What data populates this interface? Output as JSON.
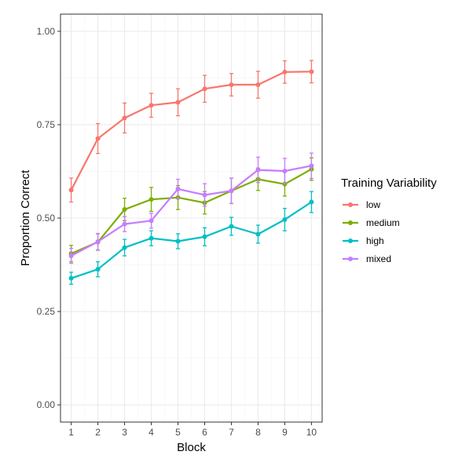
{
  "chart_data": {
    "type": "line",
    "xlabel": "Block",
    "ylabel": "Proportion Correct",
    "x": [
      1,
      2,
      3,
      4,
      5,
      6,
      7,
      8,
      9,
      10
    ],
    "x_tick_labels": [
      "1",
      "2",
      "3",
      "4",
      "5",
      "6",
      "7",
      "8",
      "9",
      "10"
    ],
    "ylim": [
      0,
      1
    ],
    "y_ticks": [
      0,
      0.25,
      0.5,
      0.75,
      1.0
    ],
    "y_tick_labels": [
      "0.00",
      "0.25",
      "0.50",
      "0.75",
      "1.00"
    ],
    "grid": true,
    "legend": {
      "title": "Training Variability",
      "position": "right"
    },
    "series": [
      {
        "name": "low",
        "color": "#F8766D",
        "values": [
          0.575,
          0.713,
          0.768,
          0.802,
          0.81,
          0.846,
          0.857,
          0.857,
          0.891,
          0.892
        ],
        "err": [
          0.032,
          0.04,
          0.04,
          0.032,
          0.036,
          0.036,
          0.03,
          0.036,
          0.03,
          0.03
        ]
      },
      {
        "name": "medium",
        "color": "#7CAE00",
        "values": [
          0.405,
          0.436,
          0.523,
          0.55,
          0.555,
          0.541,
          0.573,
          0.604,
          0.591,
          0.631
        ],
        "err": [
          0.022,
          0.022,
          0.03,
          0.032,
          0.032,
          0.03,
          0.034,
          0.03,
          0.032,
          0.03
        ]
      },
      {
        "name": "high",
        "color": "#00BFC4",
        "values": [
          0.339,
          0.363,
          0.421,
          0.446,
          0.438,
          0.45,
          0.478,
          0.457,
          0.496,
          0.543
        ],
        "err": [
          0.016,
          0.02,
          0.022,
          0.02,
          0.02,
          0.024,
          0.024,
          0.024,
          0.03,
          0.028
        ]
      },
      {
        "name": "mixed",
        "color": "#C77CFF",
        "values": [
          0.399,
          0.437,
          0.484,
          0.493,
          0.578,
          0.562,
          0.573,
          0.629,
          0.626,
          0.64
        ],
        "err": [
          0.02,
          0.022,
          0.02,
          0.02,
          0.026,
          0.03,
          0.034,
          0.034,
          0.034,
          0.034
        ]
      }
    ]
  }
}
